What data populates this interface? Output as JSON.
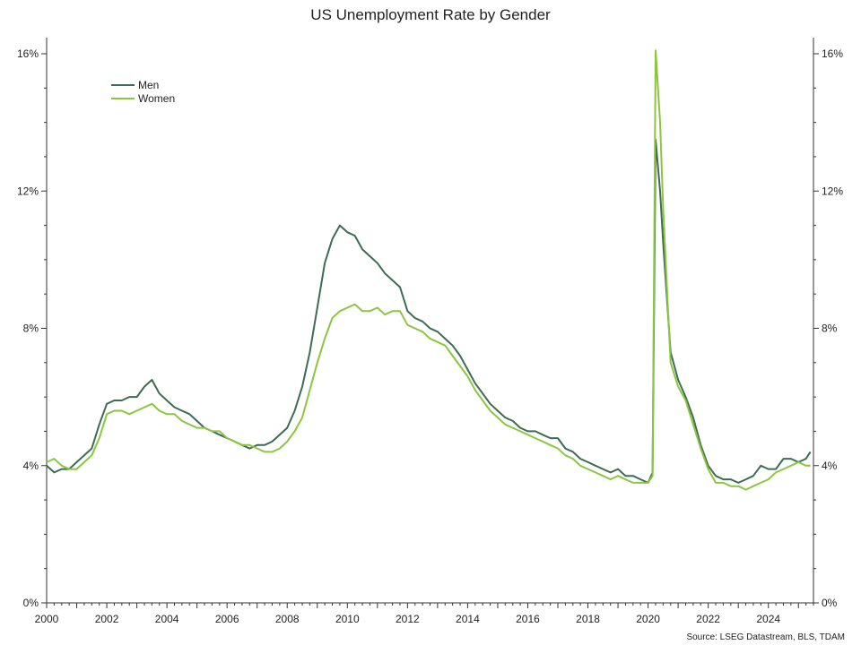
{
  "chart_data": {
    "type": "line",
    "title": "US Unemployment Rate by Gender",
    "source": "Source: LSEG Datastream, BLS, TDAM",
    "xlabel": "",
    "ylabel": "",
    "xlim": [
      2000,
      2025.5
    ],
    "ylim": [
      0,
      16.5
    ],
    "x_ticks": [
      "2000",
      "2002",
      "2004",
      "2006",
      "2008",
      "2010",
      "2012",
      "2014",
      "2016",
      "2018",
      "2020",
      "2022",
      "2024"
    ],
    "y_ticks": [
      "0%",
      "4%",
      "8%",
      "12%",
      "16%"
    ],
    "y_tick_values": [
      0,
      4,
      8,
      12,
      16
    ],
    "legend_position": "top-left",
    "grid": false,
    "series": [
      {
        "name": "Men",
        "color": "#3d6b55",
        "points": [
          [
            2000.0,
            4.0
          ],
          [
            2000.25,
            3.8
          ],
          [
            2000.5,
            3.9
          ],
          [
            2000.75,
            3.9
          ],
          [
            2001.0,
            4.1
          ],
          [
            2001.25,
            4.3
          ],
          [
            2001.5,
            4.5
          ],
          [
            2001.75,
            5.2
          ],
          [
            2002.0,
            5.8
          ],
          [
            2002.25,
            5.9
          ],
          [
            2002.5,
            5.9
          ],
          [
            2002.75,
            6.0
          ],
          [
            2003.0,
            6.0
          ],
          [
            2003.25,
            6.3
          ],
          [
            2003.5,
            6.5
          ],
          [
            2003.75,
            6.1
          ],
          [
            2004.0,
            5.9
          ],
          [
            2004.25,
            5.7
          ],
          [
            2004.5,
            5.6
          ],
          [
            2004.75,
            5.5
          ],
          [
            2005.0,
            5.3
          ],
          [
            2005.25,
            5.1
          ],
          [
            2005.5,
            5.0
          ],
          [
            2005.75,
            4.9
          ],
          [
            2006.0,
            4.8
          ],
          [
            2006.25,
            4.7
          ],
          [
            2006.5,
            4.6
          ],
          [
            2006.75,
            4.5
          ],
          [
            2007.0,
            4.6
          ],
          [
            2007.25,
            4.6
          ],
          [
            2007.5,
            4.7
          ],
          [
            2007.75,
            4.9
          ],
          [
            2008.0,
            5.1
          ],
          [
            2008.25,
            5.6
          ],
          [
            2008.5,
            6.3
          ],
          [
            2008.75,
            7.3
          ],
          [
            2009.0,
            8.6
          ],
          [
            2009.25,
            9.9
          ],
          [
            2009.5,
            10.6
          ],
          [
            2009.75,
            11.0
          ],
          [
            2010.0,
            10.8
          ],
          [
            2010.25,
            10.7
          ],
          [
            2010.5,
            10.3
          ],
          [
            2010.75,
            10.1
          ],
          [
            2011.0,
            9.9
          ],
          [
            2011.25,
            9.6
          ],
          [
            2011.5,
            9.4
          ],
          [
            2011.75,
            9.2
          ],
          [
            2012.0,
            8.5
          ],
          [
            2012.25,
            8.3
          ],
          [
            2012.5,
            8.2
          ],
          [
            2012.75,
            8.0
          ],
          [
            2013.0,
            7.9
          ],
          [
            2013.25,
            7.7
          ],
          [
            2013.5,
            7.5
          ],
          [
            2013.75,
            7.2
          ],
          [
            2014.0,
            6.8
          ],
          [
            2014.25,
            6.4
          ],
          [
            2014.5,
            6.1
          ],
          [
            2014.75,
            5.8
          ],
          [
            2015.0,
            5.6
          ],
          [
            2015.25,
            5.4
          ],
          [
            2015.5,
            5.3
          ],
          [
            2015.75,
            5.1
          ],
          [
            2016.0,
            5.0
          ],
          [
            2016.25,
            5.0
          ],
          [
            2016.5,
            4.9
          ],
          [
            2016.75,
            4.8
          ],
          [
            2017.0,
            4.8
          ],
          [
            2017.25,
            4.5
          ],
          [
            2017.5,
            4.4
          ],
          [
            2017.75,
            4.2
          ],
          [
            2018.0,
            4.1
          ],
          [
            2018.25,
            4.0
          ],
          [
            2018.5,
            3.9
          ],
          [
            2018.75,
            3.8
          ],
          [
            2019.0,
            3.9
          ],
          [
            2019.25,
            3.7
          ],
          [
            2019.5,
            3.7
          ],
          [
            2019.75,
            3.6
          ],
          [
            2020.0,
            3.5
          ],
          [
            2020.15,
            3.8
          ],
          [
            2020.25,
            13.5
          ],
          [
            2020.4,
            12.0
          ],
          [
            2020.5,
            10.5
          ],
          [
            2020.75,
            7.3
          ],
          [
            2021.0,
            6.5
          ],
          [
            2021.25,
            6.0
          ],
          [
            2021.5,
            5.4
          ],
          [
            2021.75,
            4.6
          ],
          [
            2022.0,
            4.0
          ],
          [
            2022.25,
            3.7
          ],
          [
            2022.5,
            3.6
          ],
          [
            2022.75,
            3.6
          ],
          [
            2023.0,
            3.5
          ],
          [
            2023.25,
            3.6
          ],
          [
            2023.5,
            3.7
          ],
          [
            2023.75,
            4.0
          ],
          [
            2024.0,
            3.9
          ],
          [
            2024.25,
            3.9
          ],
          [
            2024.5,
            4.2
          ],
          [
            2024.75,
            4.2
          ],
          [
            2025.0,
            4.1
          ],
          [
            2025.25,
            4.2
          ],
          [
            2025.4,
            4.4
          ]
        ]
      },
      {
        "name": "Women",
        "color": "#8cc63f",
        "points": [
          [
            2000.0,
            4.1
          ],
          [
            2000.25,
            4.2
          ],
          [
            2000.5,
            4.0
          ],
          [
            2000.75,
            3.9
          ],
          [
            2001.0,
            3.9
          ],
          [
            2001.25,
            4.1
          ],
          [
            2001.5,
            4.3
          ],
          [
            2001.75,
            4.8
          ],
          [
            2002.0,
            5.5
          ],
          [
            2002.25,
            5.6
          ],
          [
            2002.5,
            5.6
          ],
          [
            2002.75,
            5.5
          ],
          [
            2003.0,
            5.6
          ],
          [
            2003.25,
            5.7
          ],
          [
            2003.5,
            5.8
          ],
          [
            2003.75,
            5.6
          ],
          [
            2004.0,
            5.5
          ],
          [
            2004.25,
            5.5
          ],
          [
            2004.5,
            5.3
          ],
          [
            2004.75,
            5.2
          ],
          [
            2005.0,
            5.1
          ],
          [
            2005.25,
            5.1
          ],
          [
            2005.5,
            5.0
          ],
          [
            2005.75,
            5.0
          ],
          [
            2006.0,
            4.8
          ],
          [
            2006.25,
            4.7
          ],
          [
            2006.5,
            4.6
          ],
          [
            2006.75,
            4.6
          ],
          [
            2007.0,
            4.5
          ],
          [
            2007.25,
            4.4
          ],
          [
            2007.5,
            4.4
          ],
          [
            2007.75,
            4.5
          ],
          [
            2008.0,
            4.7
          ],
          [
            2008.25,
            5.0
          ],
          [
            2008.5,
            5.4
          ],
          [
            2008.75,
            6.2
          ],
          [
            2009.0,
            7.0
          ],
          [
            2009.25,
            7.7
          ],
          [
            2009.5,
            8.3
          ],
          [
            2009.75,
            8.5
          ],
          [
            2010.0,
            8.6
          ],
          [
            2010.25,
            8.7
          ],
          [
            2010.5,
            8.5
          ],
          [
            2010.75,
            8.5
          ],
          [
            2011.0,
            8.6
          ],
          [
            2011.25,
            8.4
          ],
          [
            2011.5,
            8.5
          ],
          [
            2011.75,
            8.5
          ],
          [
            2012.0,
            8.1
          ],
          [
            2012.25,
            8.0
          ],
          [
            2012.5,
            7.9
          ],
          [
            2012.75,
            7.7
          ],
          [
            2013.0,
            7.6
          ],
          [
            2013.25,
            7.5
          ],
          [
            2013.5,
            7.2
          ],
          [
            2013.75,
            6.9
          ],
          [
            2014.0,
            6.6
          ],
          [
            2014.25,
            6.2
          ],
          [
            2014.5,
            5.9
          ],
          [
            2014.75,
            5.6
          ],
          [
            2015.0,
            5.4
          ],
          [
            2015.25,
            5.2
          ],
          [
            2015.5,
            5.1
          ],
          [
            2015.75,
            5.0
          ],
          [
            2016.0,
            4.9
          ],
          [
            2016.25,
            4.8
          ],
          [
            2016.5,
            4.7
          ],
          [
            2016.75,
            4.6
          ],
          [
            2017.0,
            4.5
          ],
          [
            2017.25,
            4.3
          ],
          [
            2017.5,
            4.2
          ],
          [
            2017.75,
            4.0
          ],
          [
            2018.0,
            3.9
          ],
          [
            2018.25,
            3.8
          ],
          [
            2018.5,
            3.7
          ],
          [
            2018.75,
            3.6
          ],
          [
            2019.0,
            3.7
          ],
          [
            2019.25,
            3.6
          ],
          [
            2019.5,
            3.5
          ],
          [
            2019.75,
            3.5
          ],
          [
            2020.0,
            3.5
          ],
          [
            2020.15,
            3.7
          ],
          [
            2020.25,
            16.1
          ],
          [
            2020.4,
            14.0
          ],
          [
            2020.5,
            11.5
          ],
          [
            2020.75,
            7.0
          ],
          [
            2021.0,
            6.3
          ],
          [
            2021.25,
            5.9
          ],
          [
            2021.5,
            5.2
          ],
          [
            2021.75,
            4.5
          ],
          [
            2022.0,
            3.9
          ],
          [
            2022.25,
            3.5
          ],
          [
            2022.5,
            3.5
          ],
          [
            2022.75,
            3.4
          ],
          [
            2023.0,
            3.4
          ],
          [
            2023.25,
            3.3
          ],
          [
            2023.5,
            3.4
          ],
          [
            2023.75,
            3.5
          ],
          [
            2024.0,
            3.6
          ],
          [
            2024.25,
            3.8
          ],
          [
            2024.5,
            3.9
          ],
          [
            2024.75,
            4.0
          ],
          [
            2025.0,
            4.1
          ],
          [
            2025.25,
            4.0
          ],
          [
            2025.4,
            4.0
          ]
        ]
      }
    ]
  }
}
